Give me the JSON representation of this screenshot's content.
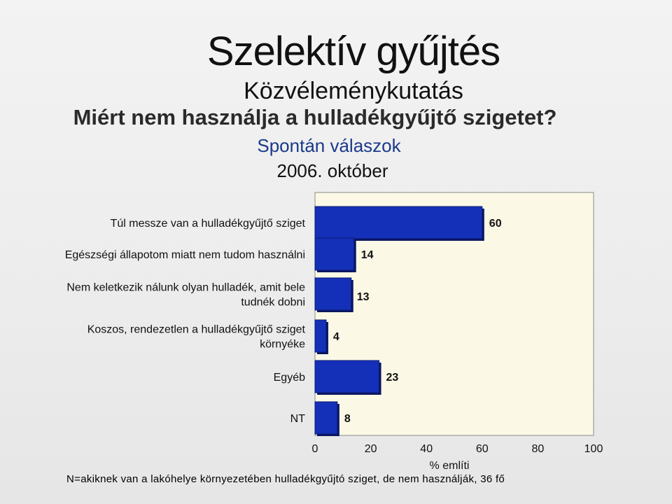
{
  "page": {
    "title": "Szelektív gyűjtés",
    "subtitle": "Közvéleménykutatás",
    "question": "Miért nem használja a hulladékgyűjtő szigetet?",
    "note": "Spontán válaszok",
    "date": "2006. október",
    "footnote": "N=akiknek van a lakóhelye környezetében hulladékgyűjtó sziget, de nem használják, 36 fő"
  },
  "chart_data": {
    "type": "bar",
    "orientation": "horizontal",
    "categories": [
      [
        "Túl messze van a hulladékgyűjtő sziget"
      ],
      [
        "Egészségi állapotom miatt nem tudom használni"
      ],
      [
        "Nem keletkezik nálunk olyan hulladék, amit bele",
        "tudnék dobni"
      ],
      [
        "Koszos, rendezetlen a hulladékgyűjtő sziget",
        "környéke"
      ],
      [
        "Egyéb"
      ],
      [
        "NT"
      ]
    ],
    "values": [
      60,
      14,
      13,
      4,
      23,
      8
    ],
    "xlabel": "% említi",
    "xlim": [
      0,
      100
    ],
    "xticks": [
      0,
      20,
      40,
      60,
      80,
      100
    ],
    "grid": false,
    "colors": {
      "bar": "#1530b8",
      "bar_shadow": "#0a1660",
      "plot_bg": "#fbf9e6",
      "plot_border": "#8a8a8a"
    }
  }
}
